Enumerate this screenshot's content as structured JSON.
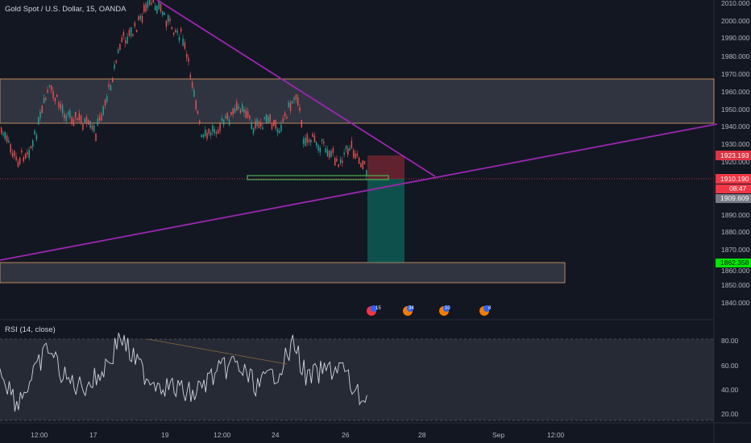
{
  "header": {
    "title": "Gold Spot / U.S. Dollar, 15, OANDA"
  },
  "rsi": {
    "label": "RSI (14, close)",
    "ticks": [
      "80.00",
      "60.00",
      "40.00",
      "20.00"
    ]
  },
  "price_axis": {
    "ticks": [
      "2010.000",
      "2000.000",
      "1990.000",
      "1980.000",
      "1970.000",
      "1960.000",
      "1950.000",
      "1940.000",
      "1930.000",
      "1920.000",
      "1890.000",
      "1880.000",
      "1870.000",
      "1860.000",
      "1850.000",
      "1840.000"
    ],
    "labels": [
      {
        "text": "1923.193",
        "color": "#f23645"
      },
      {
        "text": "1910.190",
        "color": "#f23645"
      },
      {
        "text": "08:47",
        "color": "#f23645"
      },
      {
        "text": "1909.609",
        "color": "#787b86"
      },
      {
        "text": "1862.358",
        "color": "#00e600"
      }
    ]
  },
  "time_axis": {
    "labels": [
      "12:00",
      "17",
      "19",
      "12:00",
      "24",
      "26",
      "28",
      "Sep",
      "12:00"
    ]
  },
  "events": [
    {
      "badge": "15"
    },
    {
      "badge": "34"
    },
    {
      "badge": "10"
    },
    {
      "badge": "8"
    }
  ],
  "colors": {
    "background": "#131722",
    "zone": "#363a45",
    "zone_border": "#e6a06a",
    "trendline": "#9c27b0",
    "stop": "#f23645",
    "target": "#089981",
    "support": "#4caf50",
    "candle_up": "#26a69a",
    "candle_down": "#ef5350",
    "rsi_line": "#d1d4dc",
    "axis_text": "#b2b5be"
  }
}
